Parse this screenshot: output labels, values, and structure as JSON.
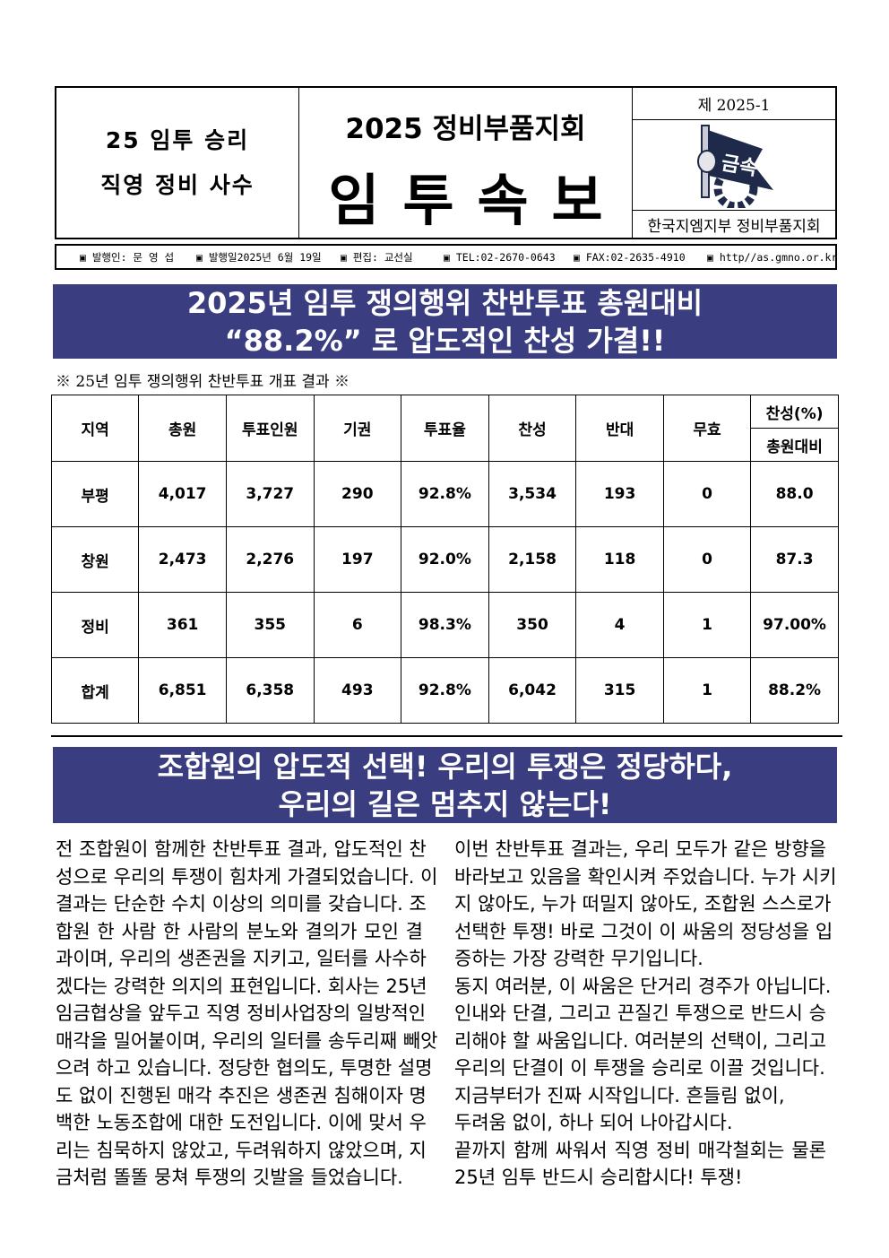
{
  "header": {
    "slogan": [
      "25 임투 승리",
      "직영 정비 사수"
    ],
    "org_title": "2025 정비부품지회",
    "paper_title": "임투속보",
    "issue_no": "제 2025-1",
    "logo_text": "금속",
    "publisher_org": "한국지엠지부 정비부품지회"
  },
  "infobar": [
    "▣ 발행인: 문 영 섭",
    "▣ 발행일2025년 6월 19일",
    "▣ 편집: 교선실",
    "▣ TEL:02-2670-0643",
    "▣ FAX:02-2635-4910",
    "▣ http//as.gmno.or.kr"
  ],
  "headline1": [
    "2025년 임투 쟁의행위 찬반투표 총원대비",
    "“88.2%” 로 압도적인 찬성 가결!!"
  ],
  "table_caption": "※ 25년 임투 쟁의행위 찬반투표 개표 결과 ※",
  "table": {
    "headers": [
      "지역",
      "총원",
      "투표인원",
      "기권",
      "투표율",
      "찬성",
      "반대",
      "무효"
    ],
    "last_header": [
      "찬성(%)",
      "총원대비"
    ],
    "rows": [
      [
        "부평",
        "4,017",
        "3,727",
        "290",
        "92.8%",
        "3,534",
        "193",
        "0",
        "88.0"
      ],
      [
        "창원",
        "2,473",
        "2,276",
        "197",
        "92.0%",
        "2,158",
        "118",
        "0",
        "87.3"
      ],
      [
        "정비",
        "361",
        "355",
        "6",
        "98.3%",
        "350",
        "4",
        "1",
        "97.00%"
      ],
      [
        "합계",
        "6,851",
        "6,358",
        "493",
        "92.8%",
        "6,042",
        "315",
        "1",
        "88.2%"
      ]
    ]
  },
  "headline2": [
    "조합원의 압도적 선택! 우리의 투쟁은 정당하다,",
    "우리의 길은 멈추지 않는다!"
  ],
  "body_left": [
    "전 조합원이 함께한 찬반투표 결과, 압도적인 찬",
    "성으로 우리의 투쟁이 힘차게 가결되었습니다. 이",
    "결과는 단순한 수치 이상의 의미를 갖습니다. 조",
    "합원 한 사람 한 사람의 분노와 결의가 모인 결",
    "과이며, 우리의 생존권을 지키고, 일터를 사수하",
    "겠다는 강력한 의지의 표현입니다. 회사는 25년",
    "임금협상을 앞두고 직영 정비사업장의 일방적인",
    "매각을 밀어붙이며, 우리의 일터를 송두리째 빼앗",
    "으려 하고 있습니다. 정당한 협의도, 투명한 설명",
    "도 없이 진행된 매각 추진은 생존권 침해이자 명",
    "백한 노동조합에 대한 도전입니다. 이에 맞서 우",
    "리는 침묵하지 않았고, 두려워하지 않았으며, 지",
    "금처럼 똘똘 뭉쳐 투쟁의 깃발을 들었습니다."
  ],
  "body_right": [
    "이번 찬반투표 결과는, 우리 모두가 같은 방향을",
    "바라보고 있음을 확인시켜 주었습니다. 누가 시키",
    "지 않아도, 누가 떠밀지 않아도, 조합원 스스로가",
    "선택한 투쟁! 바로 그것이 이 싸움의 정당성을 입",
    "증하는 가장 강력한 무기입니다.",
    "동지 여러분, 이 싸움은 단거리 경주가 아닙니다.",
    "인내와 단결, 그리고 끈질긴 투쟁으로 반드시 승",
    "리해야 할 싸움입니다. 여러분의 선택이, 그리고",
    "우리의 단결이 이 투쟁을 승리로 이끌 것입니다.",
    "지금부터가 진짜 시작입니다. 흔들림 없이,",
    "두려움 없이, 하나 되어 나아갑시다.",
    "끝까지 함께 싸워서 직영 정비 매각철회는 물론",
    "25년 임투 반드시 승리합시다! 투쟁!"
  ],
  "colors": {
    "banner": "#3a3d80",
    "logo": "#1f2a4a"
  }
}
